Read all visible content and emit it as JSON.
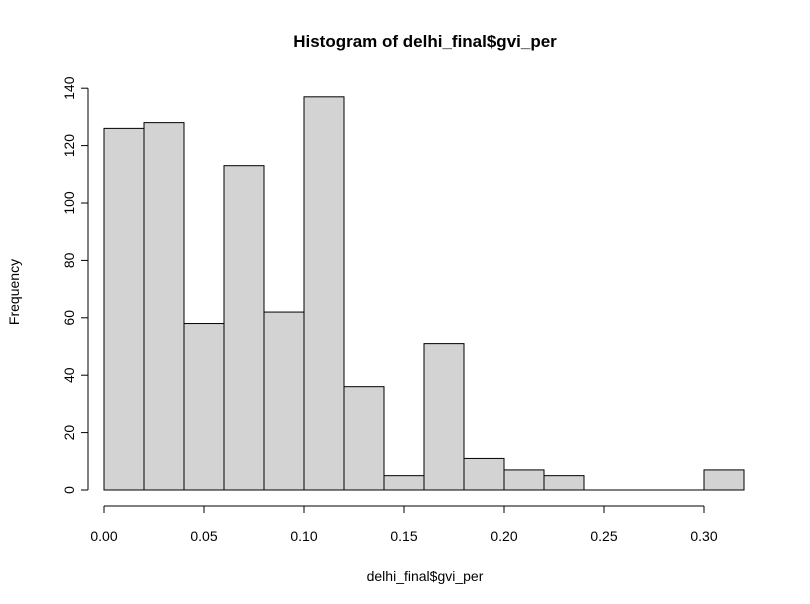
{
  "chart_data": {
    "type": "bar",
    "title": "Histogram of delhi_final$gvi_per",
    "xlabel": "delhi_final$gvi_per",
    "ylabel": "Frequency",
    "bins": [
      {
        "start": 0.0,
        "end": 0.02,
        "count": 126
      },
      {
        "start": 0.02,
        "end": 0.04,
        "count": 128
      },
      {
        "start": 0.04,
        "end": 0.06,
        "count": 58
      },
      {
        "start": 0.06,
        "end": 0.08,
        "count": 113
      },
      {
        "start": 0.08,
        "end": 0.1,
        "count": 62
      },
      {
        "start": 0.1,
        "end": 0.12,
        "count": 137
      },
      {
        "start": 0.12,
        "end": 0.14,
        "count": 36
      },
      {
        "start": 0.14,
        "end": 0.16,
        "count": 5
      },
      {
        "start": 0.16,
        "end": 0.18,
        "count": 51
      },
      {
        "start": 0.18,
        "end": 0.2,
        "count": 11
      },
      {
        "start": 0.2,
        "end": 0.22,
        "count": 7
      },
      {
        "start": 0.22,
        "end": 0.24,
        "count": 5
      },
      {
        "start": 0.24,
        "end": 0.26,
        "count": 0
      },
      {
        "start": 0.26,
        "end": 0.28,
        "count": 0
      },
      {
        "start": 0.28,
        "end": 0.3,
        "count": 0
      },
      {
        "start": 0.3,
        "end": 0.32,
        "count": 7
      }
    ],
    "x_ticks": [
      "0.00",
      "0.05",
      "0.10",
      "0.15",
      "0.20",
      "0.25",
      "0.30"
    ],
    "x_tick_values": [
      0.0,
      0.05,
      0.1,
      0.15,
      0.2,
      0.25,
      0.3
    ],
    "y_ticks": [
      "0",
      "20",
      "40",
      "60",
      "80",
      "100",
      "120",
      "140"
    ],
    "y_tick_values": [
      0,
      20,
      40,
      60,
      80,
      100,
      120,
      140
    ],
    "xlim": [
      0.0,
      0.32
    ],
    "ylim": [
      0,
      140
    ],
    "grid": false,
    "legend": "none",
    "colors": {
      "bar_fill": "#d3d3d3",
      "bar_stroke": "#000000"
    }
  }
}
